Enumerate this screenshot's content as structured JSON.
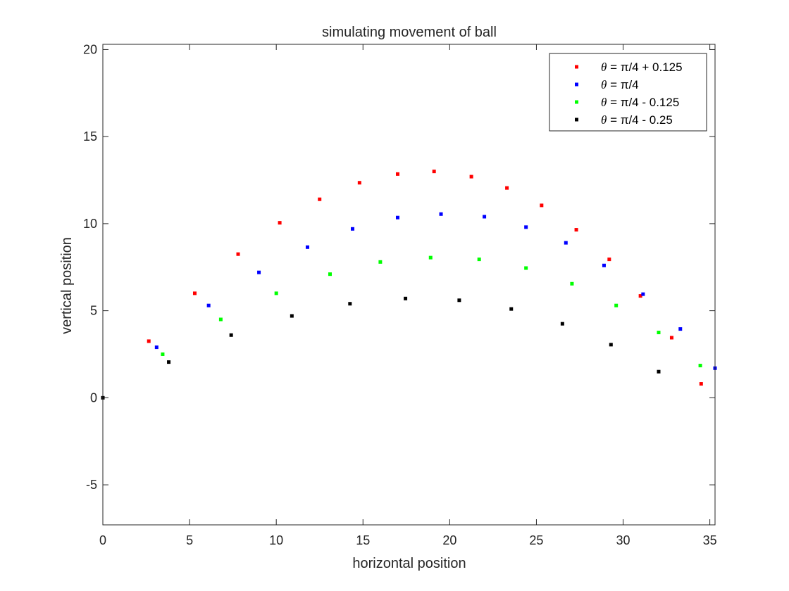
{
  "chart_data": {
    "type": "scatter",
    "title": "simulating movement of ball",
    "xlabel": "horizontal position",
    "ylabel": "vertical position",
    "xlim": [
      0,
      35.3
    ],
    "ylim": [
      -7.3,
      20.3
    ],
    "xticks": [
      0,
      5,
      10,
      15,
      20,
      25,
      30,
      35
    ],
    "yticks": [
      -5,
      0,
      5,
      10,
      15,
      20
    ],
    "grid": false,
    "legend_position": "top-right",
    "series": [
      {
        "name_symbol": "θ",
        "name_rest": " = π/4 + 0.125",
        "color": "#ff0000",
        "points": [
          [
            2.65,
            3.25
          ],
          [
            5.3,
            6.0
          ],
          [
            7.8,
            8.25
          ],
          [
            10.2,
            10.05
          ],
          [
            12.5,
            11.4
          ],
          [
            14.8,
            12.35
          ],
          [
            17.0,
            12.85
          ],
          [
            19.1,
            13.0
          ],
          [
            21.25,
            12.7
          ],
          [
            23.3,
            12.05
          ],
          [
            25.3,
            11.05
          ],
          [
            27.3,
            9.65
          ],
          [
            29.2,
            7.95
          ],
          [
            31.0,
            5.85
          ],
          [
            32.8,
            3.45
          ],
          [
            34.5,
            0.8
          ]
        ]
      },
      {
        "name_symbol": "θ",
        "name_rest": " = π/4",
        "color": "#0000ff",
        "points": [
          [
            3.1,
            2.9
          ],
          [
            6.1,
            5.3
          ],
          [
            9.0,
            7.2
          ],
          [
            11.8,
            8.65
          ],
          [
            14.4,
            9.7
          ],
          [
            17.0,
            10.35
          ],
          [
            19.5,
            10.55
          ],
          [
            22.0,
            10.4
          ],
          [
            24.4,
            9.8
          ],
          [
            26.7,
            8.9
          ],
          [
            28.9,
            7.6
          ],
          [
            31.15,
            5.95
          ],
          [
            33.3,
            3.95
          ],
          [
            35.3,
            1.7
          ]
        ]
      },
      {
        "name_symbol": "θ",
        "name_rest": " = π/4 - 0.125",
        "color": "#00ff00",
        "points": [
          [
            3.45,
            2.5
          ],
          [
            6.8,
            4.5
          ],
          [
            10.0,
            6.0
          ],
          [
            13.1,
            7.1
          ],
          [
            16.0,
            7.8
          ],
          [
            18.9,
            8.05
          ],
          [
            21.7,
            7.95
          ],
          [
            24.4,
            7.45
          ],
          [
            27.05,
            6.55
          ],
          [
            29.6,
            5.3
          ],
          [
            32.05,
            3.75
          ],
          [
            34.45,
            1.85
          ]
        ]
      },
      {
        "name_symbol": "θ",
        "name_rest": " = π/4 - 0.25",
        "color": "#000000",
        "points": [
          [
            0.0,
            0.0
          ],
          [
            3.8,
            2.05
          ],
          [
            7.4,
            3.6
          ],
          [
            10.9,
            4.7
          ],
          [
            14.25,
            5.4
          ],
          [
            17.45,
            5.7
          ],
          [
            20.55,
            5.6
          ],
          [
            23.55,
            5.1
          ],
          [
            26.5,
            4.25
          ],
          [
            29.3,
            3.05
          ],
          [
            32.05,
            1.5
          ]
        ]
      }
    ]
  }
}
